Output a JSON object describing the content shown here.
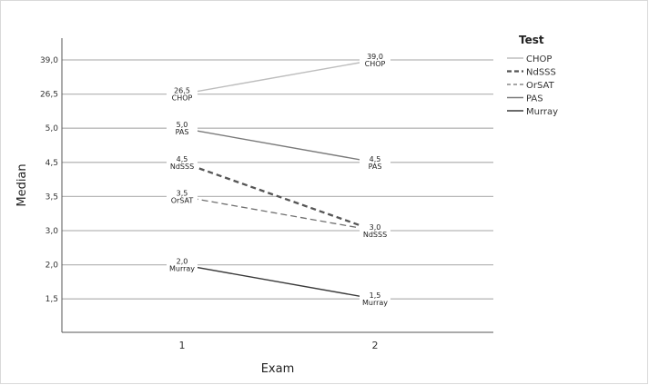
{
  "chart_data": {
    "type": "line",
    "xlabel": "Exam",
    "ylabel": "Median",
    "categories": [
      "1",
      "2"
    ],
    "y_ticks": [
      "1,5",
      "2,0",
      "3,0",
      "3,5",
      "4,5",
      "5,0",
      "26,5",
      "39,0"
    ],
    "grid": true,
    "legend": {
      "title": "Test",
      "placement": "right"
    },
    "series": [
      {
        "name": "CHOP",
        "values": [
          26.5,
          39.0
        ],
        "labels": [
          "26,5",
          "39,0"
        ],
        "color": "#bdbdbd",
        "dash": "solid"
      },
      {
        "name": "NdSSS",
        "values": [
          4.5,
          3.0
        ],
        "labels": [
          "4,5",
          "3,0"
        ],
        "color": "#555555",
        "dash": "bold-dash"
      },
      {
        "name": "OrSAT",
        "values": [
          3.5,
          3.0
        ],
        "labels": [
          "3,5",
          "3,0"
        ],
        "color": "#707070",
        "dash": "dash"
      },
      {
        "name": "PAS",
        "values": [
          5.0,
          4.5
        ],
        "labels": [
          "5,0",
          "4,5"
        ],
        "color": "#7a7a7a",
        "dash": "solid"
      },
      {
        "name": "Murray",
        "values": [
          2.0,
          1.5
        ],
        "labels": [
          "2,0",
          "1,5"
        ],
        "color": "#3a3a3a",
        "dash": "solid"
      }
    ],
    "point_labels": [
      {
        "x": "1",
        "value": "26,5",
        "tests": [
          "CHOP"
        ]
      },
      {
        "x": "1",
        "value": "5,0",
        "tests": [
          "PAS"
        ]
      },
      {
        "x": "1",
        "value": "4,5",
        "tests": [
          "NdSSS"
        ]
      },
      {
        "x": "1",
        "value": "3,5",
        "tests": [
          "OrSAT"
        ]
      },
      {
        "x": "1",
        "value": "2,0",
        "tests": [
          "Murray"
        ]
      },
      {
        "x": "2",
        "value": "39,0",
        "tests": [
          "CHOP"
        ]
      },
      {
        "x": "2",
        "value": "4,5",
        "tests": [
          "PAS"
        ]
      },
      {
        "x": "2",
        "value": "3,0",
        "tests": [
          "NdSSS"
        ]
      },
      {
        "x": "2",
        "value": "1,5",
        "tests": [
          "Murray"
        ]
      }
    ]
  }
}
